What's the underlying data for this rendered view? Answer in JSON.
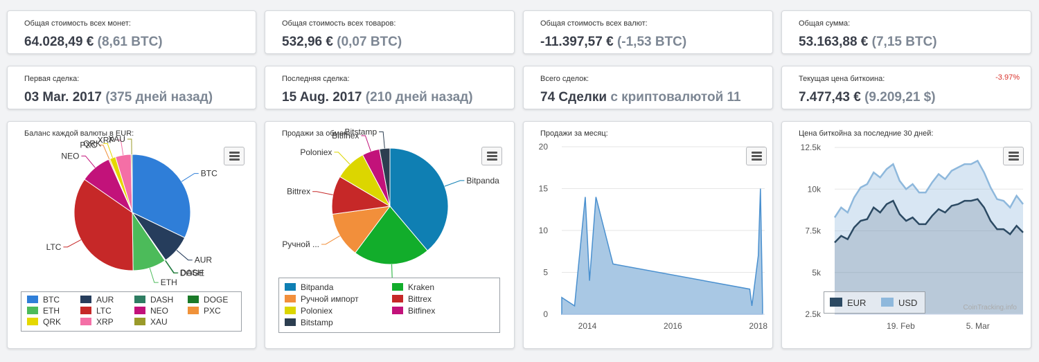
{
  "stats": [
    {
      "label": "Общая стоимость всех монет:",
      "value": "64.028,49 €",
      "sub": "(8,61 BTC)"
    },
    {
      "label": "Общая стоимость всех товаров:",
      "value": "532,96 €",
      "sub": "(0,07 BTC)"
    },
    {
      "label": "Общая стоимость всех валют:",
      "value": "-11.397,57 €",
      "sub": "(-1,53 BTC)"
    },
    {
      "label": "Общая сумма:",
      "value": "53.163,88 €",
      "sub": "(7,15 BTC)"
    },
    {
      "label": "Первая сделка:",
      "value": "03 Mar. 2017",
      "sub": "(375 дней назад)"
    },
    {
      "label": "Последняя сделка:",
      "value": "15 Aug. 2017",
      "sub": "(210 дней назад)"
    },
    {
      "label": "Всего сделок:",
      "value": "74 Сделки",
      "sub": "с криптовалютой 11"
    },
    {
      "label": "Текущая цена биткоина:",
      "value": "7.477,43 €",
      "sub": "(9.209,21 $)",
      "change": "-3.97%"
    }
  ],
  "chart_data": [
    {
      "type": "pie",
      "title": "Баланс каждой валюты в EUR:",
      "categories": [
        "BTC",
        "AUR",
        "DASH",
        "DOGE",
        "ETH",
        "LTC",
        "NEO",
        "PXC",
        "QRK",
        "XRP",
        "XAU"
      ],
      "values": [
        29.5,
        7.5,
        0.1,
        0.1,
        8.5,
        32,
        8,
        0.3,
        1.5,
        4,
        0.3
      ],
      "colors": [
        "#2f7ed8",
        "#263d5c",
        "#2e7d62",
        "#1a7a28",
        "#4cbb5a",
        "#c62828",
        "#c2127a",
        "#f0923a",
        "#e5d800",
        "#f46fa6",
        "#9a9a2a"
      ]
    },
    {
      "type": "pie",
      "title": "Продажи за обмен:",
      "categories": [
        "Bitpanda",
        "Kraken",
        "Ручной импорт",
        "Bittrex",
        "Poloniex",
        "Bitfinex",
        "Bitstamp"
      ],
      "legend_labels": [
        "Bitpanda",
        "Ручной импорт",
        "Poloniex",
        "Bitstamp",
        "Kraken",
        "Bittrex",
        "Bitfinex"
      ],
      "slice_labels": [
        "Bitpanda",
        "Kraken",
        "Ручной ...",
        "Bittrex",
        "Poloniex",
        "Bitfinex",
        "Bitstamp"
      ],
      "values": [
        40,
        22,
        13,
        11,
        9,
        5,
        3
      ],
      "colors": [
        "#0f7fb3",
        "#12ad2b",
        "#f28f3b",
        "#c62828",
        "#dcd600",
        "#c2127a",
        "#2c3e50"
      ]
    },
    {
      "type": "area",
      "title": "Продажи за месяц:",
      "x": [
        2013.4,
        2013.7,
        2013.95,
        2014.05,
        2014.2,
        2014.6,
        2017.8,
        2017.85,
        2018.0,
        2018.05,
        2018.1
      ],
      "y": [
        2,
        1,
        14,
        4,
        14,
        6,
        3,
        1,
        7,
        15,
        1
      ],
      "ylim": [
        0,
        20
      ],
      "yticks": [
        0,
        5,
        10,
        15,
        20
      ],
      "xticks": [
        2014,
        2016,
        2018
      ],
      "xlim": [
        2013.4,
        2018.15
      ],
      "color": "#7fafd6"
    },
    {
      "type": "area",
      "title": "Цена биткойна за последние 30 дней:",
      "series": [
        {
          "name": "EUR",
          "color": "#2c4a63",
          "values": [
            6800,
            7200,
            7000,
            7700,
            8100,
            8200,
            8900,
            8600,
            9100,
            9300,
            8500,
            8100,
            8300,
            7900,
            7900,
            8400,
            8800,
            8600,
            9000,
            9100,
            9300,
            9300,
            9400,
            8900,
            8100,
            7600,
            7600,
            7300,
            7800,
            7400
          ]
        },
        {
          "name": "USD",
          "color": "#8eb8dc",
          "values": [
            8300,
            8900,
            8600,
            9500,
            10100,
            10300,
            11000,
            10700,
            11200,
            11500,
            10500,
            10000,
            10300,
            9800,
            9800,
            10400,
            10900,
            10600,
            11100,
            11300,
            11500,
            11500,
            11700,
            11000,
            10100,
            9400,
            9300,
            8900,
            9600,
            9100
          ]
        }
      ],
      "x_labels": [
        "19. Feb",
        "5. Mar"
      ],
      "yticks": [
        "2.5k",
        "5k",
        "7.5k",
        "10k",
        "12.5k"
      ],
      "ylim": [
        2500,
        12500
      ],
      "credit": "CoinTracking.info"
    }
  ]
}
